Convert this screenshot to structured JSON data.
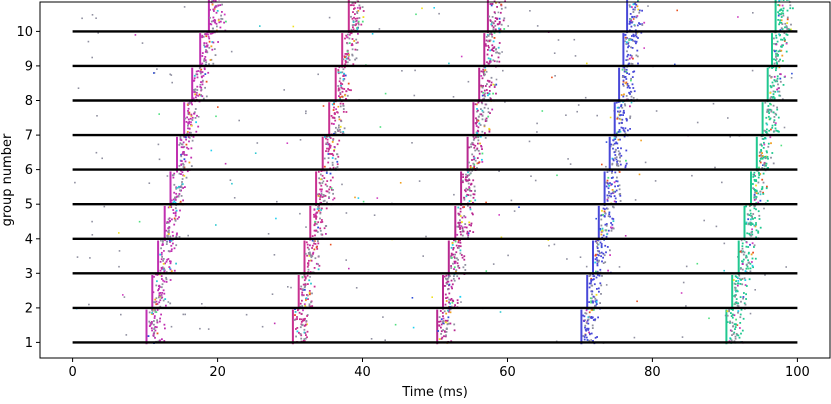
{
  "chart_data": {
    "type": "scatter",
    "title": "",
    "xlabel": "Time (ms)",
    "ylabel": "group number",
    "xlim": [
      -4.5,
      104.5
    ],
    "ylim": [
      0.55,
      10.85
    ],
    "xticks": [
      0,
      20,
      40,
      60,
      80,
      100
    ],
    "yticks": [
      1,
      2,
      3,
      4,
      5,
      6,
      7,
      8,
      9,
      10
    ],
    "grid": false,
    "group_lines": {
      "x_range": [
        0,
        100
      ],
      "groups": [
        1,
        2,
        3,
        4,
        5,
        6,
        7,
        8,
        9,
        10
      ],
      "color": "#000000"
    },
    "wave_colors": {
      "wave1": "#c030b0",
      "wave2": "#c83090",
      "wave3": "#b82890",
      "wave4": "#4848d8",
      "wave5": "#20c890"
    },
    "neuron_colors": [
      "#c030b0",
      "#d040c0",
      "#3050d8",
      "#30c8d0",
      "#50e080",
      "#f0a020",
      "#e85020",
      "#9090a0",
      "#20d0f0",
      "#f0e020"
    ],
    "waves": [
      {
        "name": "wave1",
        "onsets": [
          10.2,
          11.0,
          11.8,
          12.7,
          13.5,
          14.4,
          15.4,
          16.5,
          17.6,
          18.8
        ]
      },
      {
        "name": "wave2",
        "onsets": [
          30.4,
          31.2,
          32.0,
          32.8,
          33.6,
          34.5,
          35.4,
          36.3,
          37.2,
          38.1
        ]
      },
      {
        "name": "wave3",
        "onsets": [
          50.3,
          51.1,
          51.9,
          52.8,
          53.6,
          54.5,
          55.3,
          56.1,
          56.8,
          57.3
        ]
      },
      {
        "name": "wave4",
        "onsets": [
          70.2,
          71.0,
          71.8,
          72.6,
          73.4,
          74.1,
          74.8,
          75.4,
          76.0,
          76.5
        ]
      },
      {
        "name": "wave5",
        "onsets": [
          90.2,
          91.0,
          91.9,
          92.7,
          93.6,
          94.4,
          95.2,
          95.9,
          96.5,
          97.0
        ]
      }
    ],
    "spike_jitter_ms": 1.6,
    "background_rate": 1.2
  }
}
